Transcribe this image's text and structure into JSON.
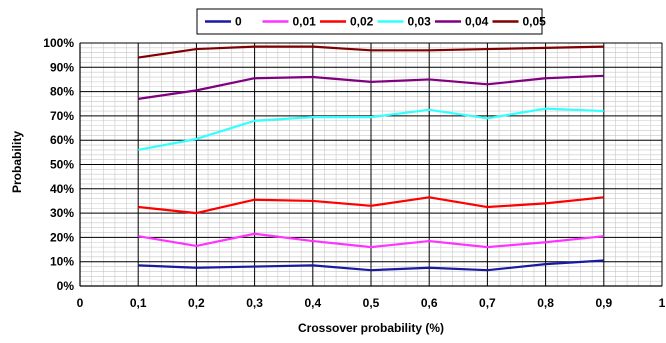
{
  "chart_data": {
    "type": "line",
    "xlabel": "Crossover probability (%)",
    "ylabel": "Probability",
    "xlim": [
      0,
      1
    ],
    "ylim": [
      0,
      100
    ],
    "x_ticks": [
      "0",
      "0,1",
      "0,2",
      "0,3",
      "0,4",
      "0,5",
      "0,6",
      "0,7",
      "0,8",
      "0,9",
      "1"
    ],
    "y_ticks": [
      "0%",
      "10%",
      "20%",
      "30%",
      "40%",
      "50%",
      "60%",
      "70%",
      "80%",
      "90%",
      "100%"
    ],
    "grid": true,
    "legend_position": "top",
    "x": [
      0.1,
      0.2,
      0.3,
      0.4,
      0.5,
      0.6,
      0.7,
      0.8,
      0.9
    ],
    "series": [
      {
        "name": "0",
        "color": "#1a1aa0",
        "values": [
          8.5,
          7.5,
          8.0,
          8.5,
          6.5,
          7.5,
          6.5,
          9.0,
          10.5
        ]
      },
      {
        "name": "0,01",
        "color": "#ff33ff",
        "values": [
          20.5,
          16.5,
          21.5,
          18.5,
          16.0,
          18.5,
          16.0,
          18.0,
          20.5
        ]
      },
      {
        "name": "0,02",
        "color": "#ff0000",
        "values": [
          32.5,
          30.0,
          35.5,
          35.0,
          33.0,
          36.5,
          32.5,
          34.0,
          36.5
        ]
      },
      {
        "name": "0,03",
        "color": "#33ffff",
        "values": [
          56.0,
          60.5,
          68.0,
          69.5,
          69.5,
          72.5,
          69.0,
          73.0,
          72.0
        ]
      },
      {
        "name": "0,04",
        "color": "#800080",
        "values": [
          77.0,
          80.5,
          85.5,
          86.0,
          84.0,
          85.0,
          83.0,
          85.5,
          86.5
        ]
      },
      {
        "name": "0,05",
        "color": "#800000",
        "values": [
          94.0,
          97.5,
          98.5,
          98.5,
          97.0,
          97.0,
          97.5,
          98.0,
          98.5
        ]
      }
    ]
  }
}
